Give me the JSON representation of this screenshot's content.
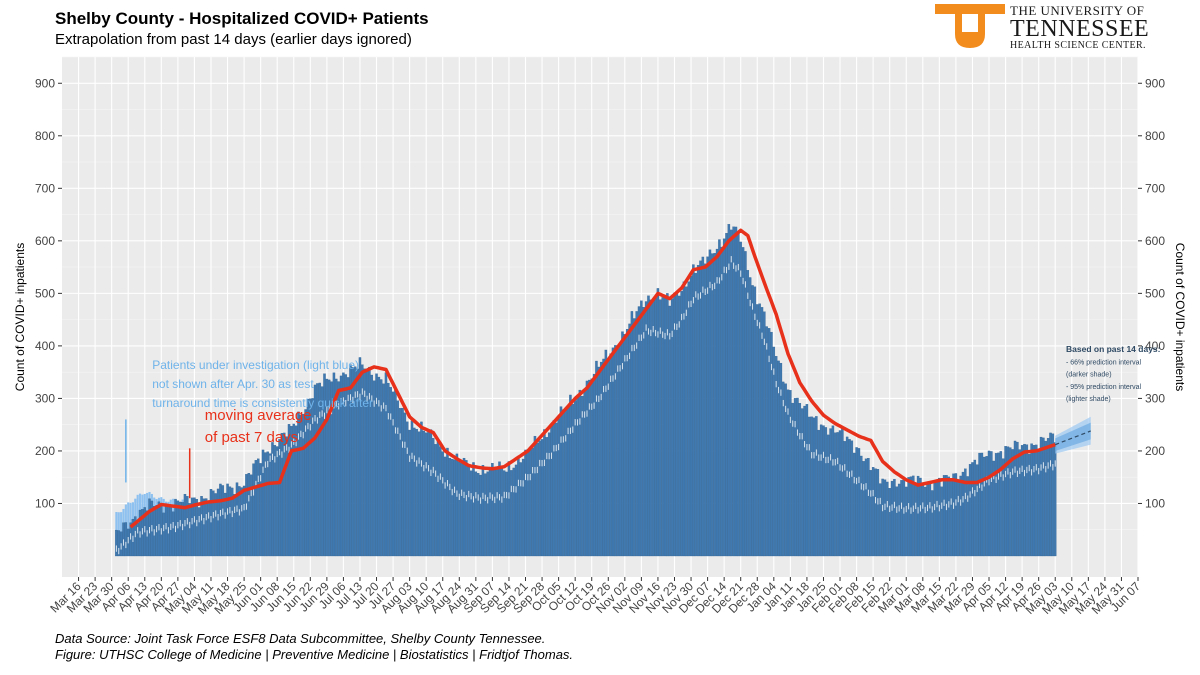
{
  "header": {
    "title": "Shelby County - Hospitalized COVID+ Patients",
    "subtitle": "Extrapolation from past 14 days (earlier days ignored)"
  },
  "logo": {
    "line1": "THE UNIVERSITY OF",
    "line2": "TENNESSEE",
    "line3": "HEALTH SCIENCE CENTER.",
    "color": "#f28c1c"
  },
  "footer": {
    "source": "Data Source: Joint Task Force ESF8 Data Subcommittee, Shelby County Tennessee.",
    "figure": "Figure: UTHSC College of Medicine | Preventive Medicine | Biostatistics | Fridtjof Thomas."
  },
  "chart_data": {
    "type": "bar",
    "ylabel": "Count of COVID+ inpatients",
    "ylim": [
      -40,
      950
    ],
    "yticks": [
      100,
      200,
      300,
      400,
      500,
      600,
      700,
      800,
      900
    ],
    "xlim_days": [
      -7,
      448
    ],
    "x_start_date": "Mar 16",
    "xticks": [
      "Mar 16",
      "Mar 23",
      "Mar 30",
      "Apr 06",
      "Apr 13",
      "Apr 20",
      "Apr 27",
      "May 04",
      "May 11",
      "May 18",
      "May 25",
      "Jun 01",
      "Jun 08",
      "Jun 15",
      "Jun 22",
      "Jun 29",
      "Jul 06",
      "Jul 13",
      "Jul 20",
      "Jul 27",
      "Aug 03",
      "Aug 10",
      "Aug 17",
      "Aug 24",
      "Aug 31",
      "Sep 07",
      "Sep 14",
      "Sep 21",
      "Sep 28",
      "Oct 05",
      "Oct 12",
      "Oct 19",
      "Oct 26",
      "Nov 02",
      "Nov 09",
      "Nov 16",
      "Nov 23",
      "Nov 30",
      "Dec 07",
      "Dec 14",
      "Dec 21",
      "Dec 28",
      "Jan 04",
      "Jan 11",
      "Jan 18",
      "Jan 25",
      "Feb 01",
      "Feb 08",
      "Feb 15",
      "Feb 22",
      "Mar 01",
      "Mar 08",
      "Mar 15",
      "Mar 22",
      "Mar 29",
      "Apr 05",
      "Apr 12",
      "Apr 19",
      "Apr 26",
      "May 03",
      "May 10",
      "May 17",
      "May 24",
      "May 31",
      "Jun 07"
    ],
    "series": [
      {
        "name": "Hospitalized COVID+ (daily)",
        "color": "#3f79b0",
        "start_day": 16,
        "end_day": 413,
        "keypoints": [
          [
            16,
            40
          ],
          [
            20,
            60
          ],
          [
            25,
            80
          ],
          [
            30,
            95
          ],
          [
            40,
            100
          ],
          [
            50,
            108
          ],
          [
            60,
            125
          ],
          [
            70,
            140
          ],
          [
            80,
            205
          ],
          [
            90,
            240
          ],
          [
            100,
            320
          ],
          [
            110,
            345
          ],
          [
            120,
            362
          ],
          [
            130,
            335
          ],
          [
            140,
            255
          ],
          [
            150,
            225
          ],
          [
            160,
            180
          ],
          [
            170,
            165
          ],
          [
            180,
            165
          ],
          [
            190,
            195
          ],
          [
            200,
            250
          ],
          [
            210,
            300
          ],
          [
            220,
            360
          ],
          [
            230,
            420
          ],
          [
            240,
            490
          ],
          [
            245,
            500
          ],
          [
            250,
            480
          ],
          [
            255,
            510
          ],
          [
            260,
            545
          ],
          [
            265,
            560
          ],
          [
            270,
            590
          ],
          [
            276,
            630
          ],
          [
            280,
            600
          ],
          [
            285,
            520
          ],
          [
            290,
            460
          ],
          [
            295,
            380
          ],
          [
            300,
            320
          ],
          [
            305,
            290
          ],
          [
            310,
            262
          ],
          [
            320,
            238
          ],
          [
            330,
            205
          ],
          [
            335,
            170
          ],
          [
            340,
            140
          ],
          [
            345,
            145
          ],
          [
            350,
            140
          ],
          [
            355,
            145
          ],
          [
            360,
            140
          ],
          [
            365,
            140
          ],
          [
            370,
            150
          ],
          [
            375,
            165
          ],
          [
            385,
            195
          ],
          [
            395,
            205
          ],
          [
            405,
            215
          ],
          [
            413,
            225
          ]
        ]
      },
      {
        "name": "Patients under investigation (light blue)",
        "color": "#8ec1ef",
        "start_day": 16,
        "end_day": 45,
        "keypoints": [
          [
            16,
            80
          ],
          [
            20,
            95
          ],
          [
            24,
            110
          ],
          [
            28,
            122
          ],
          [
            30,
            118
          ],
          [
            35,
            108
          ],
          [
            40,
            105
          ],
          [
            45,
            105
          ]
        ]
      },
      {
        "name": "COVID+ lower band (white)",
        "color": "#ffffff",
        "keypoints": [
          [
            16,
            10
          ],
          [
            25,
            45
          ],
          [
            40,
            55
          ],
          [
            60,
            80
          ],
          [
            70,
            90
          ],
          [
            80,
            180
          ],
          [
            90,
            210
          ],
          [
            100,
            260
          ],
          [
            110,
            290
          ],
          [
            120,
            310
          ],
          [
            130,
            280
          ],
          [
            140,
            190
          ],
          [
            150,
            160
          ],
          [
            160,
            118
          ],
          [
            170,
            110
          ],
          [
            180,
            112
          ],
          [
            190,
            150
          ],
          [
            200,
            195
          ],
          [
            210,
            250
          ],
          [
            220,
            300
          ],
          [
            230,
            365
          ],
          [
            240,
            430
          ],
          [
            250,
            420
          ],
          [
            255,
            450
          ],
          [
            260,
            490
          ],
          [
            265,
            505
          ],
          [
            270,
            520
          ],
          [
            276,
            560
          ],
          [
            280,
            540
          ],
          [
            285,
            470
          ],
          [
            290,
            410
          ],
          [
            295,
            330
          ],
          [
            300,
            270
          ],
          [
            305,
            230
          ],
          [
            310,
            195
          ],
          [
            320,
            180
          ],
          [
            330,
            140
          ],
          [
            335,
            120
          ],
          [
            340,
            95
          ],
          [
            350,
            90
          ],
          [
            360,
            92
          ],
          [
            370,
            100
          ],
          [
            375,
            110
          ],
          [
            385,
            145
          ],
          [
            395,
            160
          ],
          [
            405,
            165
          ],
          [
            413,
            175
          ]
        ]
      },
      {
        "name": "moving average of past 7 days",
        "color": "#e8311a",
        "start_day": 22,
        "end_day": 413,
        "keypoints": [
          [
            22,
            55
          ],
          [
            30,
            85
          ],
          [
            35,
            98
          ],
          [
            40,
            95
          ],
          [
            45,
            92
          ],
          [
            50,
            98
          ],
          [
            55,
            103
          ],
          [
            60,
            105
          ],
          [
            65,
            110
          ],
          [
            70,
            125
          ],
          [
            80,
            138
          ],
          [
            85,
            140
          ],
          [
            90,
            200
          ],
          [
            95,
            205
          ],
          [
            100,
            225
          ],
          [
            105,
            260
          ],
          [
            110,
            315
          ],
          [
            115,
            320
          ],
          [
            120,
            350
          ],
          [
            125,
            360
          ],
          [
            130,
            355
          ],
          [
            135,
            310
          ],
          [
            140,
            265
          ],
          [
            145,
            245
          ],
          [
            150,
            235
          ],
          [
            155,
            200
          ],
          [
            160,
            185
          ],
          [
            165,
            172
          ],
          [
            170,
            168
          ],
          [
            175,
            166
          ],
          [
            180,
            170
          ],
          [
            185,
            185
          ],
          [
            190,
            200
          ],
          [
            195,
            225
          ],
          [
            200,
            250
          ],
          [
            205,
            275
          ],
          [
            210,
            300
          ],
          [
            215,
            320
          ],
          [
            220,
            350
          ],
          [
            225,
            380
          ],
          [
            230,
            410
          ],
          [
            235,
            440
          ],
          [
            240,
            470
          ],
          [
            245,
            500
          ],
          [
            250,
            490
          ],
          [
            255,
            510
          ],
          [
            260,
            545
          ],
          [
            265,
            550
          ],
          [
            270,
            570
          ],
          [
            275,
            600
          ],
          [
            280,
            620
          ],
          [
            283,
            610
          ],
          [
            286,
            570
          ],
          [
            290,
            520
          ],
          [
            295,
            460
          ],
          [
            300,
            385
          ],
          [
            305,
            330
          ],
          [
            310,
            295
          ],
          [
            315,
            268
          ],
          [
            320,
            252
          ],
          [
            325,
            240
          ],
          [
            330,
            228
          ],
          [
            335,
            220
          ],
          [
            340,
            180
          ],
          [
            345,
            160
          ],
          [
            350,
            145
          ],
          [
            355,
            135
          ],
          [
            360,
            140
          ],
          [
            365,
            145
          ],
          [
            370,
            145
          ],
          [
            375,
            140
          ],
          [
            380,
            140
          ],
          [
            385,
            150
          ],
          [
            390,
            165
          ],
          [
            395,
            185
          ],
          [
            400,
            198
          ],
          [
            405,
            200
          ],
          [
            413,
            212
          ]
        ]
      },
      {
        "name": "extrapolation (dashed)",
        "color": "#2f4a64",
        "start_day": 413,
        "end_day": 428,
        "values_start_end": [
          212,
          238
        ],
        "pi66_start_end": [
          [
            200,
            224
          ],
          [
            222,
            254
          ]
        ],
        "pi95_start_end": [
          [
            195,
            229
          ],
          [
            212,
            265
          ]
        ]
      }
    ],
    "annotations": [
      {
        "lines": [
          "Patients under investigation (light blue)",
          "not shown after Apr. 30 as test",
          "turnaround time is consistently quick after"
        ],
        "color": "#6fb3ea",
        "day": 32,
        "pointer_from": 120,
        "pointer_to": 140
      },
      {
        "lines": [
          "moving average",
          "of past 7 days"
        ],
        "color": "#e8311a",
        "day": 50,
        "pointer_from": 180,
        "pointer_to": 110
      },
      {
        "lines": [
          "Based on past 14 days:",
          "- 66% prediction interval",
          "(darker shade)",
          "- 95% prediction interval",
          "(lighter shade)"
        ],
        "color": "#2f4a64",
        "day": 415
      }
    ]
  }
}
